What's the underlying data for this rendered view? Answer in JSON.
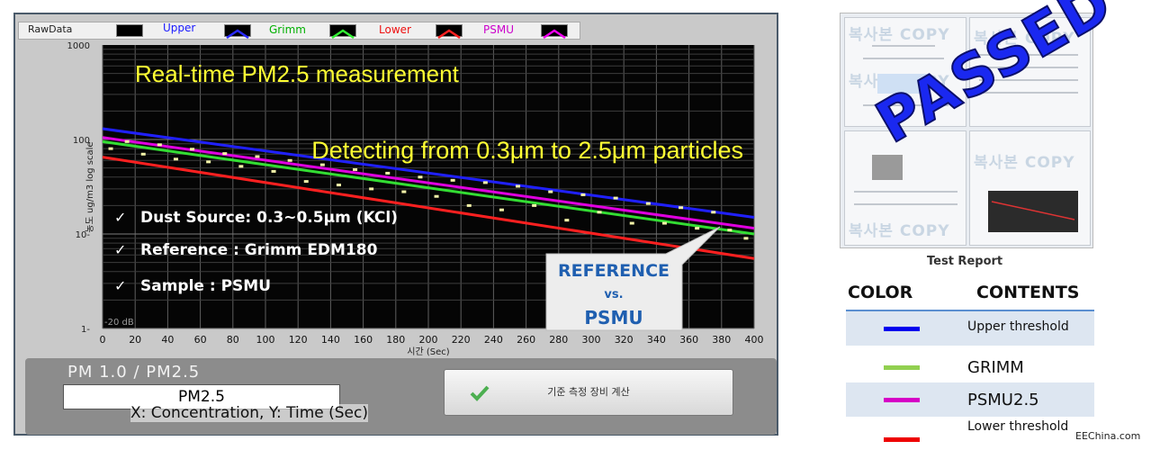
{
  "legend": {
    "items": [
      {
        "label": "RawData",
        "color": "#000000"
      },
      {
        "label": "Upper",
        "color": "#1a1aff"
      },
      {
        "label": "Grimm",
        "color": "#00cc00"
      },
      {
        "label": "Lower",
        "color": "#ff1a1a"
      },
      {
        "label": "PSMU",
        "color": "#cc00cc"
      }
    ]
  },
  "overlay": {
    "headline": "Real-time PM2.5 measurement",
    "subline": "Detecting from 0.3μm to 2.5μm particles",
    "bullets": [
      "Dust Source: 0.3~0.5μm (KCl)",
      "Reference : Grimm EDM180",
      "Sample : PSMU"
    ],
    "callout_line1": "REFERENCE",
    "callout_line2": "vs.",
    "callout_line3": "PSMU",
    "low_label": "-20 dB"
  },
  "axis": {
    "ylabel": "농도 ug/m3 log scale",
    "xlabel": "시간 (Sec)"
  },
  "bottom": {
    "pm_label": "PM 1.0  /  PM2.5",
    "pm_value": "PM2.5",
    "calc_button": "기준 측정 장비 계산",
    "caption": "X: Concentration, Y: Time (Sec)"
  },
  "report": {
    "stamp": "PASSED",
    "caption": "Test Report",
    "watermark": "복사본 COPY"
  },
  "color_table": {
    "headers": [
      "COLOR",
      "CONTENTS"
    ],
    "rows": [
      {
        "color": "#0000ee",
        "label": "Upper threshold"
      },
      {
        "color": "#92d050",
        "label": "GRIMM"
      },
      {
        "color": "#d600c6",
        "label": "PSMU2.5"
      },
      {
        "color": "#ee0000",
        "label": "Lower threshold"
      }
    ]
  },
  "source": "EEChina.com",
  "chart_data": {
    "type": "line",
    "xlabel": "시간 (Sec)",
    "ylabel": "농도 ug/m3 log scale",
    "x_ticks": [
      0,
      20,
      40,
      60,
      80,
      100,
      120,
      140,
      160,
      180,
      200,
      220,
      240,
      260,
      280,
      300,
      320,
      340,
      360,
      380,
      400
    ],
    "y_ticks": [
      {
        "value": 1,
        "label": "1-"
      },
      {
        "value": 10,
        "label": "10-"
      },
      {
        "value": 100,
        "label": "100"
      },
      {
        "value": 1000,
        "label": "1000"
      }
    ],
    "xlim": [
      0,
      400
    ],
    "ylim": [
      1,
      1000
    ],
    "yscale": "log",
    "series": [
      {
        "name": "Upper",
        "color": "#2020ff",
        "x": [
          0,
          400
        ],
        "y": [
          130,
          15
        ]
      },
      {
        "name": "PSMU",
        "color": "#e000e0",
        "x": [
          0,
          400
        ],
        "y": [
          105,
          11.5
        ]
      },
      {
        "name": "Grimm",
        "color": "#33dd33",
        "x": [
          0,
          400
        ],
        "y": [
          95,
          10
        ]
      },
      {
        "name": "Lower",
        "color": "#ff2020",
        "x": [
          0,
          400
        ],
        "y": [
          65,
          5.5
        ]
      }
    ],
    "rawdata": {
      "name": "RawData",
      "x": [
        5,
        15,
        25,
        35,
        45,
        55,
        65,
        75,
        85,
        95,
        105,
        115,
        125,
        135,
        145,
        155,
        165,
        175,
        185,
        195,
        205,
        215,
        225,
        235,
        245,
        255,
        265,
        275,
        285,
        295,
        305,
        315,
        325,
        335,
        345,
        355,
        365,
        375,
        385,
        395
      ],
      "y": [
        80,
        95,
        70,
        88,
        62,
        79,
        58,
        71,
        52,
        66,
        46,
        60,
        36,
        54,
        33,
        48,
        30,
        44,
        28,
        40,
        25,
        37,
        20,
        35,
        18,
        32,
        20,
        28,
        14,
        26,
        17,
        24,
        13,
        21,
        13,
        19,
        11.5,
        17,
        11,
        9
      ]
    }
  }
}
